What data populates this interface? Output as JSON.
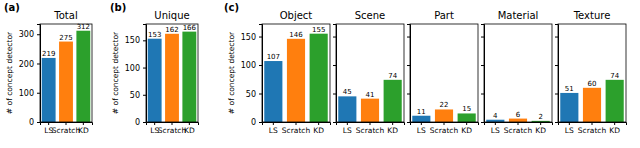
{
  "chart_data": [
    {
      "type": "bar",
      "title": "Total",
      "annotations": [
        "(a)"
      ],
      "y_label": "# of concept detector",
      "categories": [
        "LS",
        "Scratch",
        "KD"
      ],
      "values": [
        219,
        275,
        312
      ],
      "colors": [
        "#1f77b4",
        "#ff7f0e",
        "#2ca02c"
      ],
      "ylim": [
        0,
        335
      ],
      "yticks": [
        0,
        100,
        200,
        300
      ],
      "data_labels": true
    },
    {
      "type": "bar",
      "title": "Unique",
      "annotations": [
        "(b)"
      ],
      "y_label": "# of concept detector",
      "categories": [
        "LS",
        "Scratch",
        "KD"
      ],
      "values": [
        153,
        162,
        166
      ],
      "colors": [
        "#1f77b4",
        "#ff7f0e",
        "#2ca02c"
      ],
      "ylim": [
        0,
        180
      ],
      "yticks": [
        0,
        50,
        100,
        150
      ],
      "data_labels": true
    },
    {
      "type": "bar",
      "title": "Object",
      "annotations": [
        "(c)"
      ],
      "y_label": "# of concept detector",
      "categories": [
        "LS",
        "Scratch",
        "KD"
      ],
      "values": [
        107,
        146,
        155
      ],
      "colors": [
        "#1f77b4",
        "#ff7f0e",
        "#2ca02c"
      ],
      "ylim": [
        0,
        172
      ],
      "yticks": [
        0,
        50,
        100,
        150
      ],
      "data_labels": true
    },
    {
      "type": "bar",
      "title": "Scene",
      "categories": [
        "LS",
        "Scratch",
        "KD"
      ],
      "values": [
        45,
        41,
        74
      ],
      "colors": [
        "#1f77b4",
        "#ff7f0e",
        "#2ca02c"
      ],
      "ylim": [
        0,
        172
      ],
      "yticks": [
        0,
        50,
        100,
        150
      ],
      "data_labels": true,
      "tick_labels": "x"
    },
    {
      "type": "bar",
      "title": "Part",
      "categories": [
        "LS",
        "Scratch",
        "KD"
      ],
      "values": [
        11,
        22,
        15
      ],
      "colors": [
        "#1f77b4",
        "#ff7f0e",
        "#2ca02c"
      ],
      "ylim": [
        0,
        172
      ],
      "yticks": [
        0,
        50,
        100,
        150
      ],
      "data_labels": true,
      "tick_labels": "x"
    },
    {
      "type": "bar",
      "title": "Material",
      "categories": [
        "LS",
        "Scratch",
        "KD"
      ],
      "values": [
        4,
        6,
        2
      ],
      "colors": [
        "#1f77b4",
        "#ff7f0e",
        "#2ca02c"
      ],
      "ylim": [
        0,
        172
      ],
      "yticks": [
        0,
        50,
        100,
        150
      ],
      "data_labels": true,
      "tick_labels": "x"
    },
    {
      "type": "bar",
      "title": "Texture",
      "categories": [
        "LS",
        "Scratch",
        "KD"
      ],
      "values": [
        51,
        60,
        74
      ],
      "colors": [
        "#1f77b4",
        "#ff7f0e",
        "#2ca02c"
      ],
      "ylim": [
        0,
        172
      ],
      "yticks": [
        0,
        50,
        100,
        150
      ],
      "data_labels": true,
      "tick_labels": "x"
    }
  ]
}
